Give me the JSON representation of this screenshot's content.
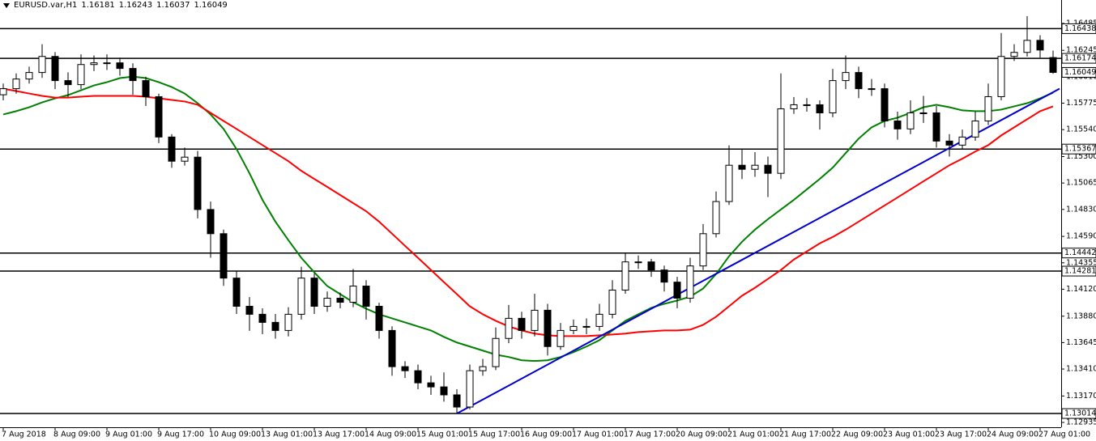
{
  "chart_data": {
    "type": "candlestick",
    "symbol": "EURUSD.var,H1",
    "header_ohlc": [
      1.16181,
      1.16243,
      1.16037,
      1.16049
    ],
    "categories": [
      "7 Aug 2018",
      null,
      null,
      null,
      "8 Aug 09:00",
      null,
      null,
      null,
      "9 Aug 01:00",
      null,
      null,
      null,
      "9 Aug 17:00",
      null,
      null,
      null,
      "10 Aug 09:00",
      null,
      null,
      null,
      "13 Aug 01:00",
      null,
      null,
      null,
      "13 Aug 17:00",
      null,
      null,
      null,
      "14 Aug 09:00",
      null,
      null,
      null,
      "15 Aug 01:00",
      null,
      null,
      null,
      "15 Aug 17:00",
      null,
      null,
      null,
      "16 Aug 09:00",
      null,
      null,
      null,
      "17 Aug 01:00",
      null,
      null,
      null,
      "17 Aug 17:00",
      null,
      null,
      null,
      "20 Aug 09:00",
      null,
      null,
      null,
      "21 Aug 01:00",
      null,
      null,
      null,
      "21 Aug 17:00",
      null,
      null,
      null,
      "22 Aug 09:00",
      null,
      null,
      null,
      "23 Aug 01:00",
      null,
      null,
      null,
      "23 Aug 17:00",
      null,
      null,
      null,
      "24 Aug 09:00",
      null,
      null,
      null,
      "27 Aug 01:00",
      null
    ],
    "open": [
      1.1585,
      1.15904,
      1.1599,
      1.16048,
      1.16191,
      1.15976,
      1.1594,
      1.16119,
      1.16134,
      1.16134,
      1.16084,
      1.15976,
      1.15833,
      1.15474,
      1.15259,
      1.15295,
      1.14829,
      1.14614,
      1.14219,
      1.13968,
      1.13897,
      1.13825,
      1.13753,
      1.13897,
      1.14219,
      1.13968,
      1.1404,
      1.14004,
      1.14148,
      1.13968,
      1.13753,
      1.13431,
      1.13395,
      1.13287,
      1.13251,
      1.1318,
      1.13072,
      1.13395,
      1.13431,
      1.13682,
      1.13861,
      1.13753,
      1.13933,
      1.1361,
      1.13753,
      1.13789,
      1.13789,
      1.13897,
      1.14112,
      1.14363,
      1.14363,
      1.14291,
      1.14183,
      1.1404,
      1.14327,
      1.14614,
      1.149,
      1.15223,
      1.15187,
      1.15223,
      1.15151,
      1.15725,
      1.15761,
      1.15761,
      1.15689,
      1.15976,
      1.16048,
      1.15904,
      1.15904,
      1.15617,
      1.15546,
      1.15689,
      1.15689,
      1.15438,
      1.15402,
      1.15474,
      1.15617,
      1.15833,
      1.16191,
      1.16227,
      1.16334,
      1.16181
    ],
    "high": [
      1.1595,
      1.1604,
      1.161,
      1.163,
      1.1623,
      1.1605,
      1.1621,
      1.162,
      1.1621,
      1.1618,
      1.1613,
      1.1601,
      1.1586,
      1.155,
      1.1538,
      1.1535,
      1.149,
      1.1465,
      1.1428,
      1.1405,
      1.1395,
      1.139,
      1.1396,
      1.1432,
      1.1426,
      1.141,
      1.1409,
      1.143,
      1.142,
      1.14,
      1.1379,
      1.1348,
      1.1345,
      1.1335,
      1.1338,
      1.1323,
      1.1345,
      1.135,
      1.1378,
      1.1398,
      1.1392,
      1.1408,
      1.1399,
      1.1382,
      1.1385,
      1.1386,
      1.1399,
      1.142,
      1.14442,
      1.1442,
      1.1439,
      1.1433,
      1.1423,
      1.144,
      1.147,
      1.1499,
      1.154,
      1.1537,
      1.1534,
      1.153,
      1.1604,
      1.1583,
      1.1582,
      1.158,
      1.1608,
      1.162,
      1.161,
      1.1599,
      1.1595,
      1.157,
      1.158,
      1.1584,
      1.1575,
      1.155,
      1.1554,
      1.157,
      1.1595,
      1.164,
      1.163,
      1.1655,
      1.1638,
      1.16243
    ],
    "low": [
      1.158,
      1.1586,
      1.1595,
      1.16,
      1.159,
      1.1583,
      1.159,
      1.1606,
      1.1607,
      1.1602,
      1.1585,
      1.1575,
      1.1542,
      1.152,
      1.1522,
      1.1475,
      1.144,
      1.1415,
      1.139,
      1.1375,
      1.1372,
      1.1368,
      1.137,
      1.1385,
      1.139,
      1.1392,
      1.1395,
      1.1396,
      1.1385,
      1.1368,
      1.1335,
      1.1333,
      1.1323,
      1.1318,
      1.1312,
      1.13014,
      1.1305,
      1.1335,
      1.134,
      1.1364,
      1.1368,
      1.137,
      1.1353,
      1.1358,
      1.1372,
      1.1372,
      1.1375,
      1.1386,
      1.1408,
      1.143,
      1.1423,
      1.141,
      1.1395,
      1.14,
      1.1429,
      1.1458,
      1.1487,
      1.151,
      1.1512,
      1.1494,
      1.151,
      1.1568,
      1.157,
      1.1554,
      1.1565,
      1.159,
      1.1582,
      1.1584,
      1.1556,
      1.1545,
      1.155,
      1.156,
      1.1538,
      1.153,
      1.1537,
      1.1544,
      1.1558,
      1.158,
      1.1615,
      1.1619,
      1.1618,
      1.16037
    ],
    "close": [
      1.15904,
      1.1599,
      1.16048,
      1.16191,
      1.15976,
      1.1594,
      1.16119,
      1.16134,
      1.16134,
      1.16084,
      1.15976,
      1.15833,
      1.15474,
      1.15259,
      1.15295,
      1.14829,
      1.14614,
      1.14219,
      1.13968,
      1.13897,
      1.13825,
      1.13753,
      1.13897,
      1.14219,
      1.13968,
      1.1404,
      1.14004,
      1.14148,
      1.13968,
      1.13753,
      1.13431,
      1.13395,
      1.13287,
      1.13251,
      1.1318,
      1.13072,
      1.13395,
      1.13431,
      1.13682,
      1.13861,
      1.13753,
      1.13933,
      1.1361,
      1.13753,
      1.13789,
      1.13789,
      1.13897,
      1.14112,
      1.14363,
      1.14363,
      1.14291,
      1.14183,
      1.1404,
      1.14327,
      1.14614,
      1.149,
      1.15223,
      1.15187,
      1.15223,
      1.15151,
      1.15725,
      1.15761,
      1.15761,
      1.15689,
      1.15976,
      1.16048,
      1.15904,
      1.15904,
      1.15617,
      1.15546,
      1.15689,
      1.15689,
      1.15438,
      1.15402,
      1.15474,
      1.15617,
      1.15833,
      1.16191,
      1.16227,
      1.16334,
      1.16248,
      1.16049
    ],
    "moving_averages": [
      {
        "color": "#008000",
        "values": [
          1.15675,
          1.15704,
          1.15739,
          1.15782,
          1.15818,
          1.15847,
          1.1589,
          1.15933,
          1.15962,
          1.15998,
          1.16012,
          1.15998,
          1.15962,
          1.15919,
          1.15861,
          1.15775,
          1.15675,
          1.15546,
          1.15367,
          1.15151,
          1.14915,
          1.14721,
          1.14556,
          1.14399,
          1.1427,
          1.14148,
          1.14076,
          1.14004,
          1.13947,
          1.13897,
          1.13861,
          1.13825,
          1.13789,
          1.13753,
          1.13696,
          1.13646,
          1.1361,
          1.13574,
          1.13538,
          1.13517,
          1.13488,
          1.13481,
          1.13488,
          1.13517,
          1.1356,
          1.1361,
          1.13667,
          1.13753,
          1.13839,
          1.13897,
          1.13954,
          1.1399,
          1.14019,
          1.14054,
          1.14126,
          1.14255,
          1.14413,
          1.14542,
          1.1465,
          1.14743,
          1.14829,
          1.14915,
          1.15008,
          1.15101,
          1.15202,
          1.15331,
          1.1546,
          1.1556,
          1.15617,
          1.15646,
          1.15689,
          1.15739,
          1.15761,
          1.15739,
          1.15711,
          1.15704,
          1.15704,
          1.15718,
          1.15747,
          1.15775,
          1.15818,
          1.15868
        ]
      },
      {
        "color": "#ff0000",
        "values": [
          1.15904,
          1.15883,
          1.15861,
          1.1584,
          1.15825,
          1.15825,
          1.15833,
          1.1584,
          1.1584,
          1.1584,
          1.1584,
          1.15833,
          1.15818,
          1.15804,
          1.1579,
          1.15761,
          1.15689,
          1.15617,
          1.15546,
          1.15474,
          1.15402,
          1.15331,
          1.15259,
          1.15173,
          1.15101,
          1.1503,
          1.14958,
          1.14886,
          1.14814,
          1.14721,
          1.14614,
          1.14506,
          1.14399,
          1.14291,
          1.14183,
          1.14076,
          1.13968,
          1.13897,
          1.13839,
          1.13789,
          1.13753,
          1.13725,
          1.1371,
          1.13703,
          1.13703,
          1.13703,
          1.1371,
          1.13717,
          1.13725,
          1.13739,
          1.13746,
          1.13753,
          1.13753,
          1.1376,
          1.13803,
          1.13875,
          1.13968,
          1.14062,
          1.14133,
          1.14212,
          1.14291,
          1.14384,
          1.14456,
          1.14528,
          1.14585,
          1.1465,
          1.14721,
          1.14793,
          1.14865,
          1.14936,
          1.15008,
          1.1508,
          1.15151,
          1.15223,
          1.15281,
          1.15345,
          1.15402,
          1.15488,
          1.1556,
          1.15632,
          1.15704,
          1.15747
        ]
      }
    ],
    "trendline": {
      "color": "#0000cc",
      "x": [
        35,
        81.5
      ],
      "values": [
        1.13014,
        1.15904
      ]
    },
    "levels": [
      1.16438,
      1.16174,
      1.15367,
      1.14442,
      1.14281,
      1.13014
    ],
    "current_price": 1.16049,
    "ylim": [
      1.12892,
      1.16693
    ],
    "yticks": [
      1.16485,
      1.16245,
      {
        "value": 1.1601,
        "label": "1.16010"
      },
      1.15775,
      {
        "value": 1.1554,
        "label": "1.15540"
      },
      {
        "value": 1.153,
        "label": "1.15300"
      },
      1.15065,
      {
        "value": 1.1483,
        "label": "1.14830"
      },
      {
        "value": 1.1459,
        "label": "1.14590"
      },
      1.14355,
      {
        "value": 1.1412,
        "label": "1.14120"
      },
      {
        "value": 1.1388,
        "label": "1.13880"
      },
      1.13645,
      {
        "value": 1.1341,
        "label": "1.13410"
      },
      {
        "value": 1.1317,
        "label": "1.13170"
      },
      1.12935
    ]
  }
}
